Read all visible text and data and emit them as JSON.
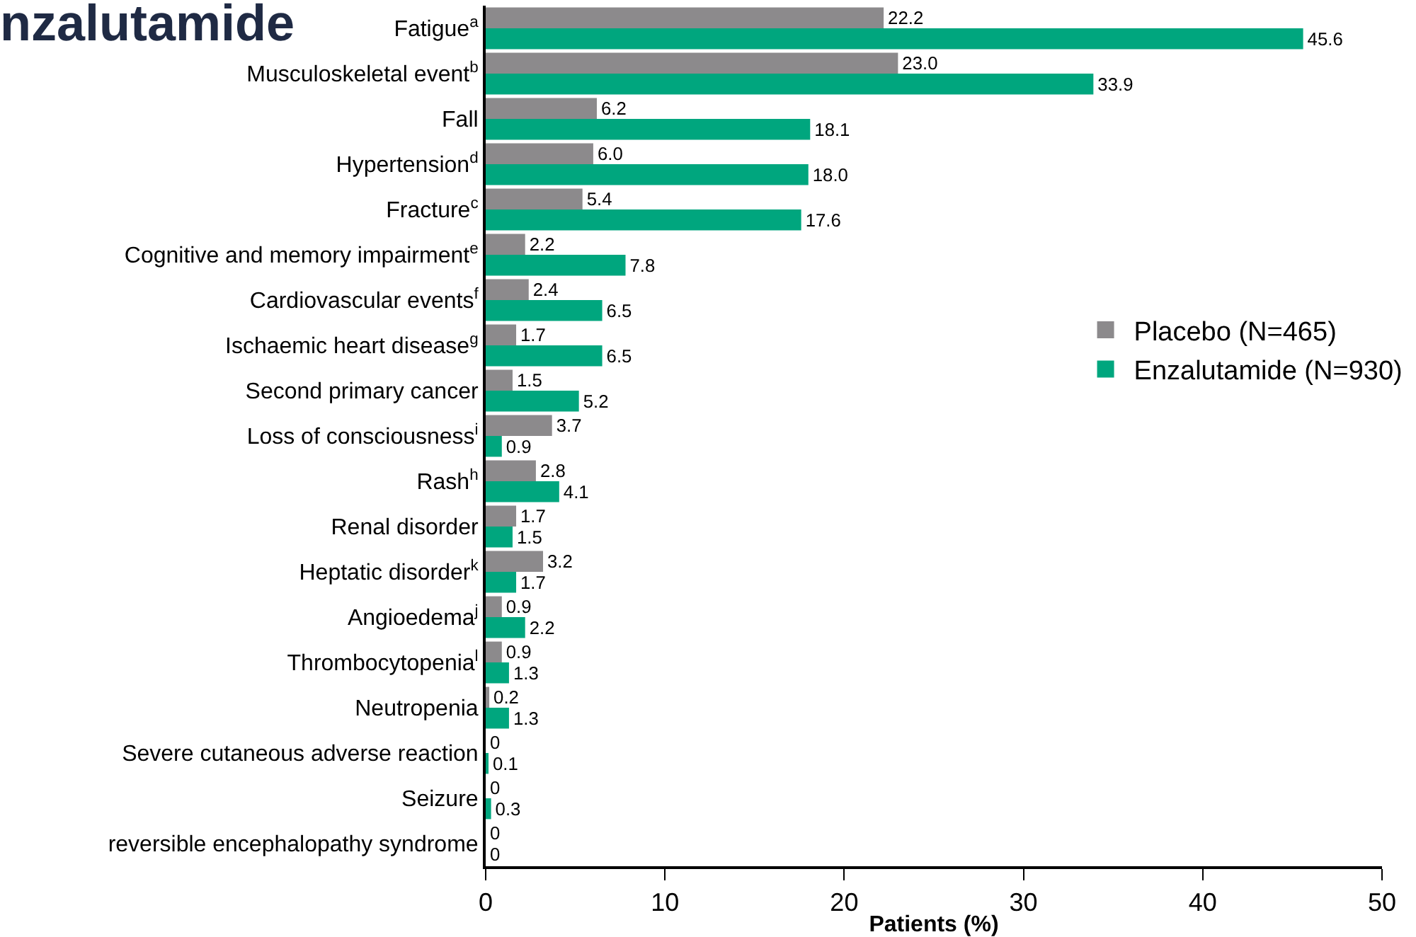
{
  "chart_data": {
    "type": "bar",
    "orientation": "horizontal",
    "title": "nzalutamide",
    "xlabel": "Patients (%)",
    "categories": [
      "Fatigue$^{a}$",
      "Musculoskeletal event$^{b}$",
      "Fall",
      "Hypertension$^{d}$",
      "Fracture$^{c}$",
      "Cognitive and memory impairment$^{e}$",
      "Cardiovascular events$^{f}$",
      "Ischaemic heart disease$^{g}$",
      "Second primary cancer",
      "Loss of consciousness$^{i}$",
      "Rash$^{h}$",
      "Renal disorder",
      "Heptatic disorder$^{k}$",
      "Angioedema$^{j}$",
      "Thrombocytopenia$^{l}$",
      "Neutropenia",
      "Severe cutaneous adverse reaction",
      "Seizure",
      "reversible encephalopathy syndrome"
    ],
    "series": [
      {
        "name": "Placebo (N=465)",
        "color": "#8c8a8c",
        "values": [
          22.2,
          23.0,
          6.2,
          6.0,
          5.4,
          2.2,
          2.4,
          1.7,
          1.5,
          3.7,
          2.8,
          1.7,
          3.2,
          0.9,
          0.9,
          0.2,
          0,
          0,
          0
        ],
        "value_labels": [
          "22.2",
          "23.0",
          "6.2",
          "6.0",
          "5.4",
          "2.2",
          "2.4",
          "1.7",
          "1.5",
          "3.7",
          "2.8",
          "1.7",
          "3.2",
          "0.9",
          "0.9",
          "0.2",
          "0",
          "0",
          "0"
        ]
      },
      {
        "name": "Enzalutamide (N=930)",
        "color": "#00a67e",
        "values": [
          45.6,
          33.9,
          18.1,
          18.0,
          17.6,
          7.8,
          6.5,
          6.5,
          5.2,
          0.9,
          4.1,
          1.5,
          1.7,
          2.2,
          1.3,
          1.3,
          0.1,
          0.3,
          0
        ],
        "value_labels": [
          "45.6",
          "33.9",
          "18.1",
          "18.0",
          "17.6",
          "7.8",
          "6.5",
          "6.5",
          "5.2",
          "0.9",
          "4.1",
          "1.5",
          "1.7",
          "2.2",
          "1.3",
          "1.3",
          "0.1",
          "0.3",
          "0"
        ]
      }
    ],
    "xlim": [
      0,
      50
    ],
    "xticks": [
      0,
      10,
      20,
      30,
      40,
      50
    ],
    "grid": false,
    "legend": "right"
  }
}
